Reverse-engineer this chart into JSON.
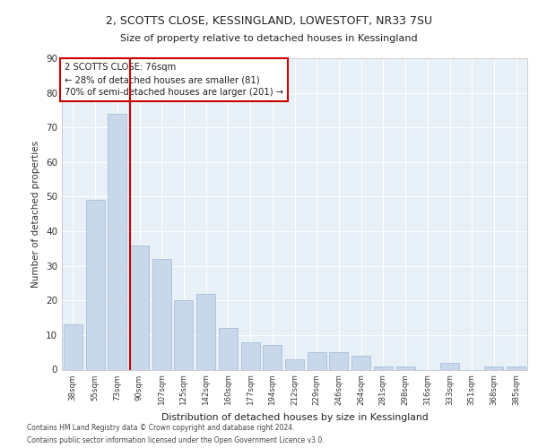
{
  "title1": "2, SCOTTS CLOSE, KESSINGLAND, LOWESTOFT, NR33 7SU",
  "title2": "Size of property relative to detached houses in Kessingland",
  "xlabel": "Distribution of detached houses by size in Kessingland",
  "ylabel": "Number of detached properties",
  "categories": [
    "38sqm",
    "55sqm",
    "73sqm",
    "90sqm",
    "107sqm",
    "125sqm",
    "142sqm",
    "160sqm",
    "177sqm",
    "194sqm",
    "212sqm",
    "229sqm",
    "246sqm",
    "264sqm",
    "281sqm",
    "298sqm",
    "316sqm",
    "333sqm",
    "351sqm",
    "368sqm",
    "385sqm"
  ],
  "values": [
    13,
    49,
    74,
    36,
    32,
    20,
    22,
    12,
    8,
    7,
    3,
    5,
    5,
    4,
    1,
    1,
    0,
    2,
    0,
    1,
    1
  ],
  "bar_color": "#c8d8ea",
  "bar_edgecolor": "#a8c0d8",
  "vline_x": 2.57,
  "vline_color": "#cc0000",
  "annotation_text": "2 SCOTTS CLOSE: 76sqm\n← 28% of detached houses are smaller (81)\n70% of semi-detached houses are larger (201) →",
  "annotation_box_facecolor": "#ffffff",
  "annotation_box_edgecolor": "#cc0000",
  "footer1": "Contains HM Land Registry data © Crown copyright and database right 2024.",
  "footer2": "Contains public sector information licensed under the Open Government Licence v3.0.",
  "ylim": [
    0,
    90
  ],
  "plot_bg_color": "#e8f0f8"
}
